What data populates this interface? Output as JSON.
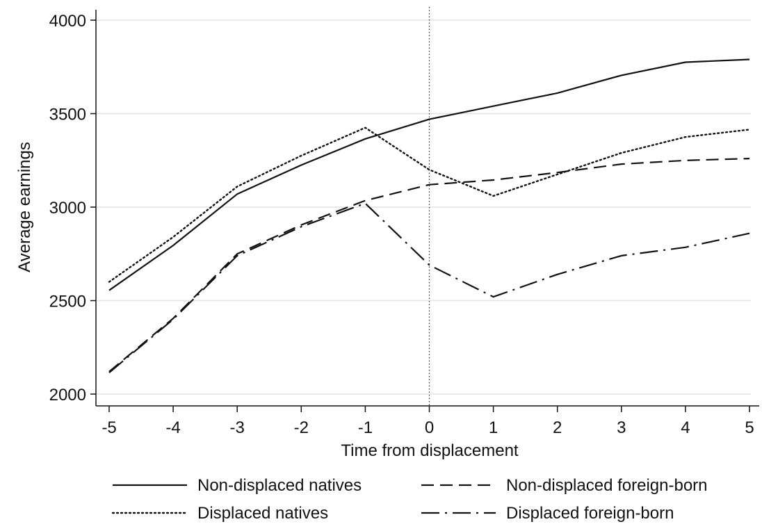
{
  "chart_data": {
    "type": "line",
    "title": "",
    "xlabel": "Time from displacement",
    "ylabel": "Average earnings",
    "x": [
      -5,
      -4,
      -3,
      -2,
      -1,
      0,
      1,
      2,
      3,
      4,
      5
    ],
    "xticks": [
      "-5",
      "-4",
      "-3",
      "-2",
      "-1",
      "0",
      "1",
      "2",
      "3",
      "4",
      "5"
    ],
    "yticks": [
      "2000",
      "2500",
      "3000",
      "3500",
      "4000"
    ],
    "ylim": [
      2000,
      4000
    ],
    "xlim": [
      -5,
      5
    ],
    "grid": "horizontal",
    "reference_line_x": 0,
    "legend_position": "bottom",
    "series": [
      {
        "name": "Non-displaced natives",
        "style": "solid",
        "values": [
          2555,
          2795,
          3070,
          3225,
          3365,
          3470,
          3540,
          3610,
          3705,
          3775,
          3790
        ]
      },
      {
        "name": "Non-displaced foreign-born",
        "style": "dashed",
        "values": [
          2120,
          2405,
          2750,
          2905,
          3035,
          3120,
          3145,
          3185,
          3230,
          3250,
          3260
        ]
      },
      {
        "name": "Displaced natives",
        "style": "dotted",
        "values": [
          2600,
          2840,
          3110,
          3275,
          3425,
          3200,
          3060,
          3175,
          3290,
          3375,
          3415
        ]
      },
      {
        "name": "Displaced foreign-born",
        "style": "dashdot",
        "values": [
          2115,
          2400,
          2740,
          2895,
          3020,
          2690,
          2520,
          2640,
          2740,
          2785,
          2860
        ]
      }
    ],
    "colors": {
      "line": "#111111",
      "grid": "#e3e3e3",
      "axis": "#111111"
    }
  }
}
